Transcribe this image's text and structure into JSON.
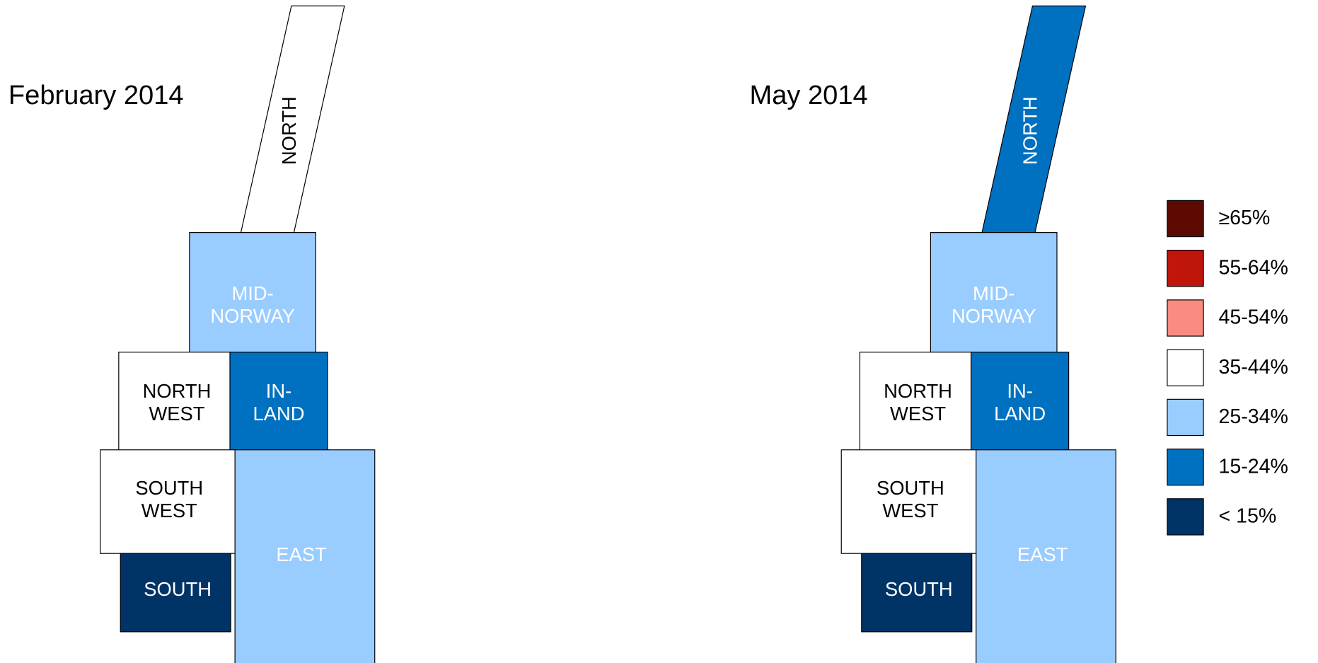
{
  "maps": [
    {
      "title": "February 2014",
      "regions": [
        {
          "label": [
            "NORTH"
          ],
          "color": "#ffffff"
        },
        {
          "label": [
            "MID-",
            "NORWAY"
          ],
          "color": "#99ccff"
        },
        {
          "label": [
            "NORTH",
            "WEST"
          ],
          "color": "#ffffff"
        },
        {
          "label": [
            "IN-",
            "LAND"
          ],
          "color": "#0070c0"
        },
        {
          "label": [
            "SOUTH",
            "WEST"
          ],
          "color": "#ffffff"
        },
        {
          "label": [
            "SOUTH"
          ],
          "color": "#003366"
        },
        {
          "label": [
            "EAST"
          ],
          "color": "#99ccff"
        }
      ]
    },
    {
      "title": "May 2014",
      "regions": [
        {
          "label": [
            "NORTH"
          ],
          "color": "#0070c0"
        },
        {
          "label": [
            "MID-",
            "NORWAY"
          ],
          "color": "#99ccff"
        },
        {
          "label": [
            "NORTH",
            "WEST"
          ],
          "color": "#ffffff"
        },
        {
          "label": [
            "IN-",
            "LAND"
          ],
          "color": "#0070c0"
        },
        {
          "label": [
            "SOUTH",
            "WEST"
          ],
          "color": "#ffffff"
        },
        {
          "label": [
            "SOUTH"
          ],
          "color": "#003366"
        },
        {
          "label": [
            "EAST"
          ],
          "color": "#99ccff"
        }
      ]
    }
  ],
  "legend": [
    {
      "label": "≥65%",
      "color": "#5c0a02"
    },
    {
      "label": "55-64%",
      "color": "#c0150a"
    },
    {
      "label": "45-54%",
      "color": "#f98b80"
    },
    {
      "label": "35-44%",
      "color": "#ffffff"
    },
    {
      "label": "25-34%",
      "color": "#99ccff"
    },
    {
      "label": "15-24%",
      "color": "#0070c0"
    },
    {
      "label": "< 15%",
      "color": "#003366"
    }
  ]
}
